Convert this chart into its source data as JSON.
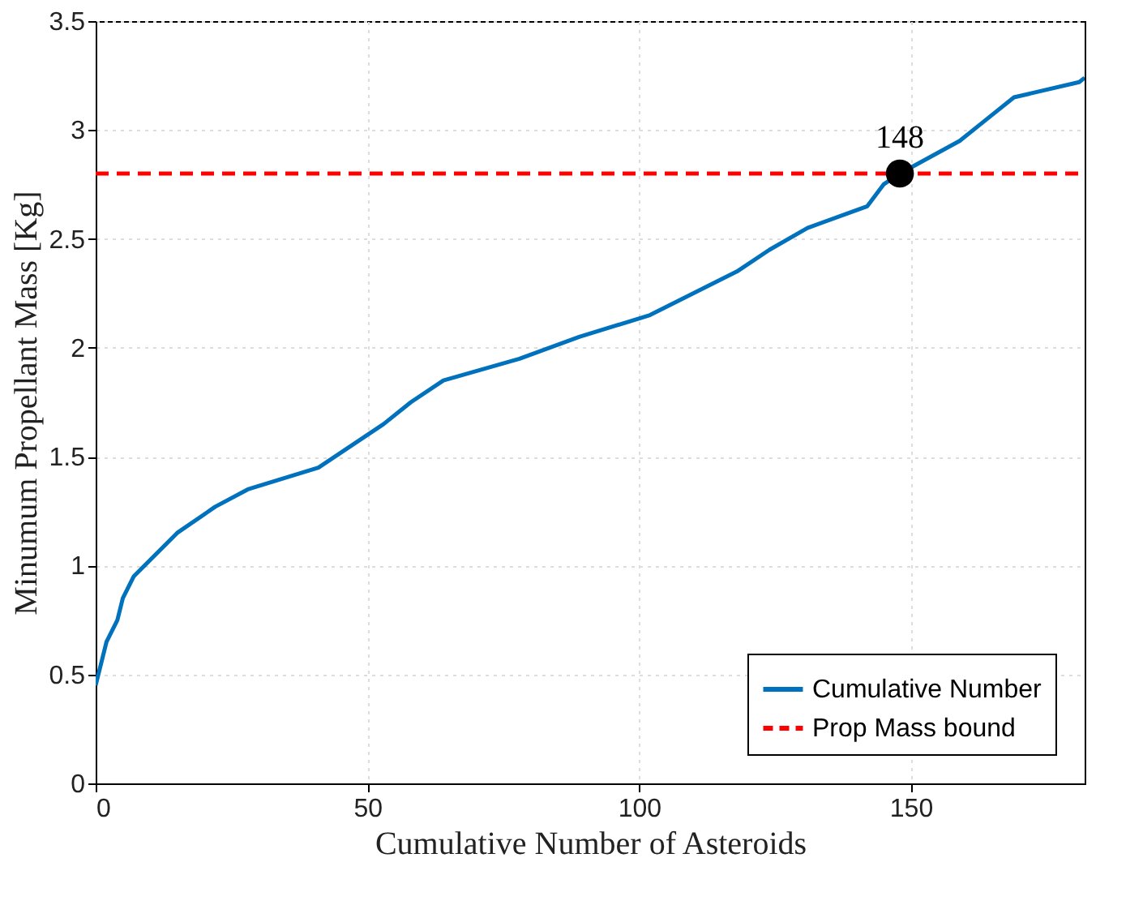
{
  "chart_data": {
    "type": "line",
    "xlabel": "Cumulative Number of Asteroids",
    "ylabel": "Minumum Propellant Mass [Kg]",
    "xlim": [
      0,
      182
    ],
    "xticks": [
      0,
      50,
      100,
      150
    ],
    "ylim": [
      0,
      3.5
    ],
    "yticks": [
      0,
      0.5,
      1,
      1.5,
      2,
      2.5,
      3,
      3.5
    ],
    "grid": true,
    "legend": "bottom right",
    "line_style": "solid",
    "marker": "none",
    "series": [
      {
        "name": "Cumulative Number",
        "color": "#0072bd",
        "x": [
          0,
          2,
          4,
          5,
          7,
          15,
          22,
          28,
          41,
          53,
          58,
          64,
          78,
          89,
          102,
          118,
          124,
          131,
          142,
          145,
          148,
          159,
          164,
          169,
          181,
          182
        ],
        "values": [
          0.45,
          0.65,
          0.75,
          0.85,
          0.95,
          1.15,
          1.27,
          1.35,
          1.45,
          1.65,
          1.75,
          1.85,
          1.95,
          2.05,
          2.15,
          2.35,
          2.45,
          2.55,
          2.65,
          2.75,
          2.8,
          2.95,
          3.05,
          3.15,
          3.22,
          3.24
        ]
      }
    ],
    "ref_lines": [
      {
        "axis": "y",
        "value": 2.8,
        "label": "Prop Mass bound",
        "color": "#ff0000",
        "line_style": "dashed"
      }
    ],
    "annotations": [
      {
        "text": "148",
        "x": 148,
        "y": 2.8
      }
    ]
  }
}
